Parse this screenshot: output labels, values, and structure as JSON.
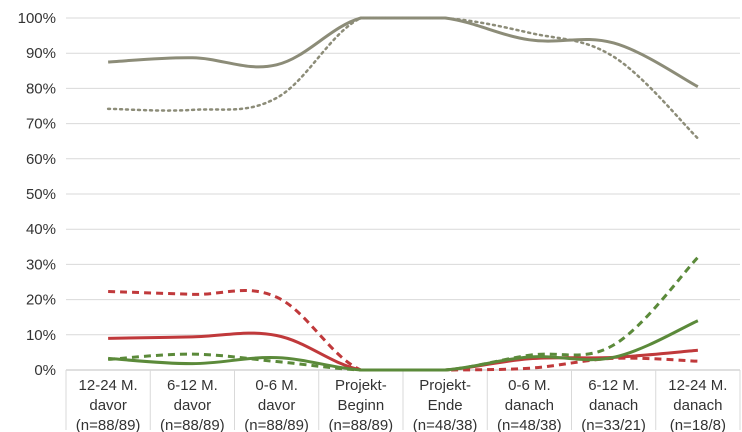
{
  "chart_data": {
    "type": "line",
    "title": "",
    "xlabel": "",
    "ylabel": "",
    "ylim": [
      0,
      100
    ],
    "yticks": [
      "0%",
      "10%",
      "20%",
      "30%",
      "40%",
      "50%",
      "60%",
      "70%",
      "80%",
      "90%",
      "100%"
    ],
    "categories": [
      [
        "12-24 M.",
        "davor",
        "(n=88/89)"
      ],
      [
        "6-12 M.",
        "davor",
        "(n=88/89)"
      ],
      [
        "0-6 M.",
        "davor",
        "(n=88/89)"
      ],
      [
        "Projekt-",
        "Beginn",
        "(n=88/89)"
      ],
      [
        "Projekt-",
        "Ende",
        "(n=48/38)"
      ],
      [
        "0-6 M.",
        "danach",
        "(n=48/38)"
      ],
      [
        "6-12 M.",
        "danach",
        "(n=33/21)"
      ],
      [
        "12-24 M.",
        "danach",
        "(n=18/8)"
      ]
    ],
    "grid": true,
    "series": [
      {
        "color": "#8c8c78",
        "style": "solid",
        "values": [
          87.5,
          88.7,
          86.7,
          100,
          100,
          93.8,
          92.9,
          80.5
        ]
      },
      {
        "color": "#8c8c78",
        "style": "dotted",
        "values": [
          74.2,
          73.9,
          77.3,
          100,
          100,
          95.8,
          89.0,
          65.8
        ]
      },
      {
        "color": "#c0393b",
        "style": "solid",
        "values": [
          9.0,
          9.4,
          9.8,
          0,
          0,
          3.2,
          3.6,
          5.6
        ]
      },
      {
        "color": "#c0393b",
        "style": "dashed",
        "values": [
          22.3,
          21.5,
          20.7,
          0,
          0,
          0.5,
          3.3,
          2.5
        ]
      },
      {
        "color": "#5b8a3a",
        "style": "solid",
        "values": [
          3.3,
          1.8,
          3.5,
          0,
          0,
          3.7,
          3.6,
          14.0
        ]
      },
      {
        "color": "#5b8a3a",
        "style": "dashed",
        "values": [
          3.0,
          4.5,
          2.4,
          0,
          0,
          4.2,
          7.1,
          32.0
        ]
      }
    ]
  }
}
